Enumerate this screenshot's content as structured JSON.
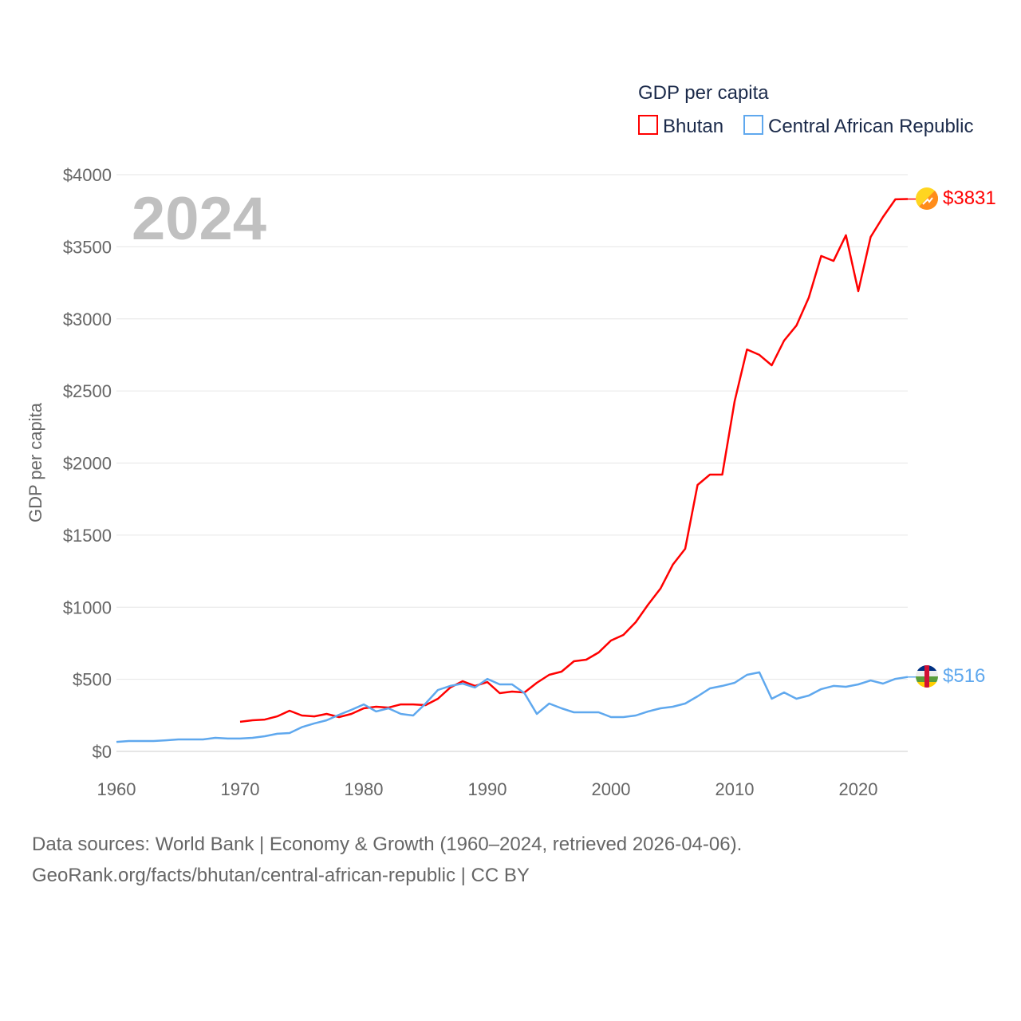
{
  "chart_data": {
    "type": "line",
    "title": "GDP per capita",
    "ylabel": "GDP per capita",
    "xlabel": "",
    "year_label": "2024",
    "xlim": [
      1960,
      2024
    ],
    "ylim": [
      0,
      4000
    ],
    "x_ticks": [
      1960,
      1970,
      1980,
      1990,
      2000,
      2010,
      2020
    ],
    "y_ticks": [
      0,
      500,
      1000,
      1500,
      2000,
      2500,
      3000,
      3500,
      4000
    ],
    "y_tick_labels": [
      "$0",
      "$500",
      "$1000",
      "$1500",
      "$2000",
      "$2500",
      "$3000",
      "$3500",
      "$4000"
    ],
    "grid": true,
    "legend_position": "top-right",
    "series": [
      {
        "name": "Bhutan",
        "color": "#ff0000",
        "end_label": "$3831",
        "start_year": 1970,
        "values": [
          205,
          216,
          221,
          243,
          282,
          249,
          243,
          260,
          238,
          260,
          299,
          310,
          304,
          326,
          326,
          321,
          365,
          443,
          487,
          454,
          481,
          404,
          415,
          409,
          476,
          531,
          553,
          625,
          636,
          686,
          769,
          808,
          896,
          1018,
          1129,
          1295,
          1405,
          1848,
          1920,
          1920,
          2429,
          2788,
          2750,
          2678,
          2849,
          2954,
          3148,
          3436,
          3402,
          3580,
          3192,
          3568,
          3707,
          3829,
          3831
        ]
      },
      {
        "name": "Central African Republic",
        "color": "#5fa8ee",
        "end_label": "$516",
        "start_year": 1960,
        "values": [
          66,
          72,
          72,
          72,
          77,
          83,
          83,
          83,
          94,
          89,
          89,
          94,
          105,
          122,
          127,
          168,
          194,
          216,
          254,
          288,
          326,
          277,
          299,
          260,
          249,
          332,
          426,
          454,
          470,
          443,
          503,
          465,
          465,
          404,
          260,
          332,
          299,
          271,
          271,
          271,
          238,
          238,
          249,
          277,
          299,
          310,
          332,
          382,
          437,
          454,
          476,
          531,
          548,
          365,
          409,
          365,
          387,
          432,
          454,
          448,
          465,
          492,
          470,
          503,
          516
        ]
      }
    ]
  },
  "footer": {
    "line1": "Data sources: World Bank | Economy & Growth (1960–2024, retrieved 2026-04-06).",
    "line2": "GeoRank.org/facts/bhutan/central-african-republic | CC BY"
  }
}
